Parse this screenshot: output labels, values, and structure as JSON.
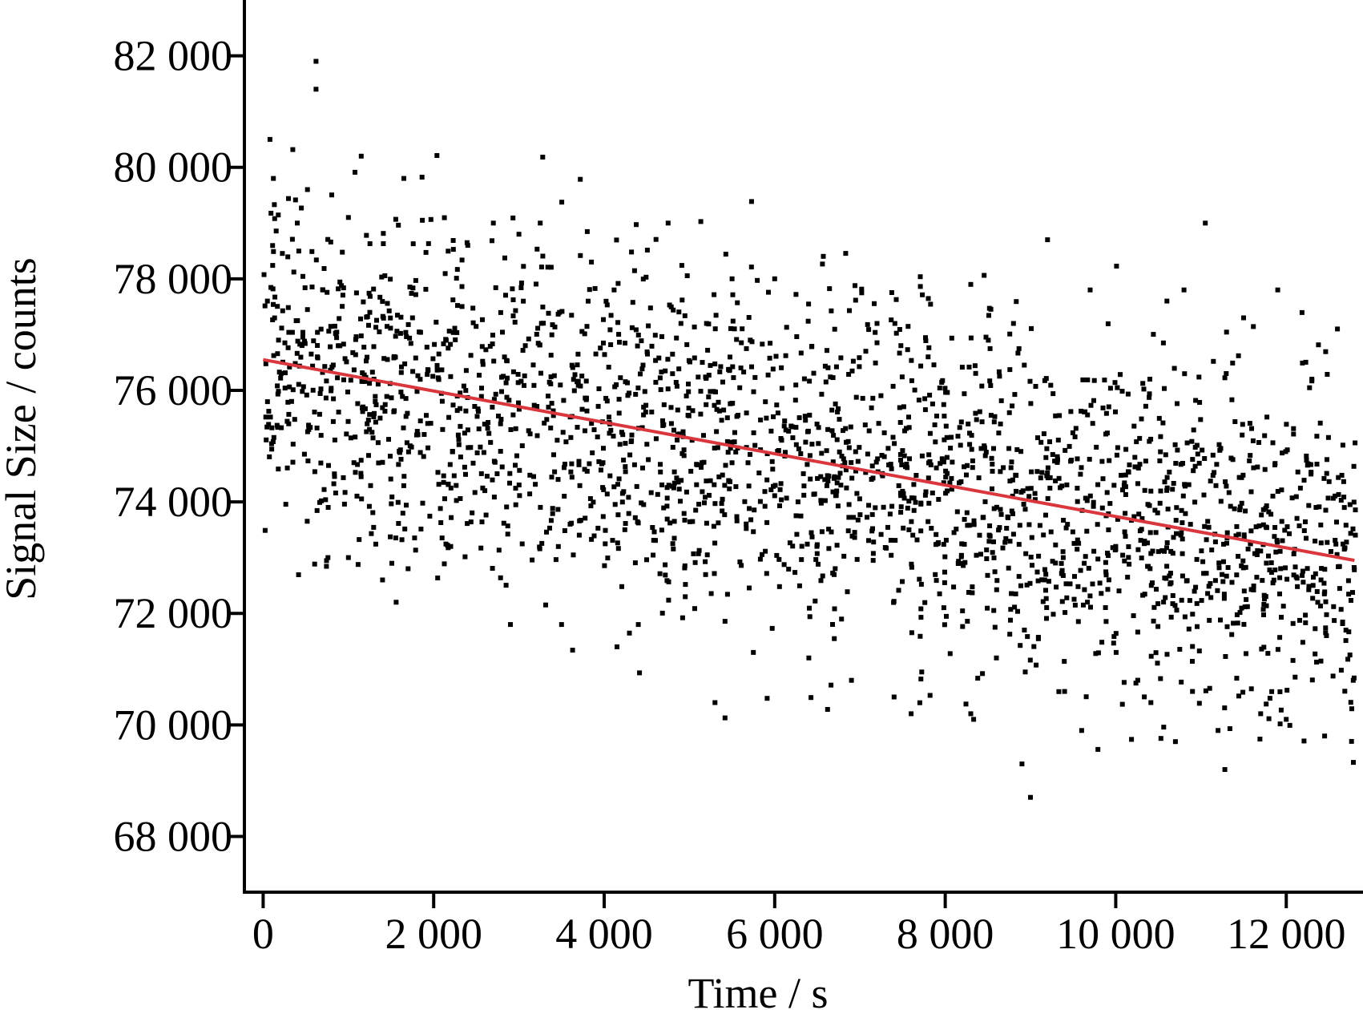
{
  "chart_data": {
    "type": "scatter",
    "title": "",
    "xlabel": "Time / s",
    "ylabel": "Signal Size / counts",
    "xlim": [
      -220,
      12900
    ],
    "ylim": [
      67000,
      83000
    ],
    "x_ticks": [
      0,
      2000,
      4000,
      6000,
      8000,
      10000,
      12000
    ],
    "x_tick_labels": [
      "0",
      "2 000",
      "4 000",
      "6 000",
      "8 000",
      "10 000",
      "12 000"
    ],
    "y_ticks": [
      68000,
      70000,
      72000,
      74000,
      76000,
      78000,
      80000,
      82000
    ],
    "y_tick_labels": [
      "68 000",
      "70 000",
      "72 000",
      "74 000",
      "76 000",
      "78 000",
      "80 000",
      "82 000"
    ],
    "grid": false,
    "legend": "none",
    "colors": {
      "points": "#000000",
      "fit_line": "#d9363e",
      "axis": "#000000"
    },
    "series": [
      {
        "type": "scatter",
        "points": [
          [
            50,
            77600
          ],
          [
            80,
            80500
          ],
          [
            120,
            79800
          ],
          [
            180,
            76900
          ],
          [
            300,
            75400
          ],
          [
            400,
            79000
          ],
          [
            520,
            79600
          ],
          [
            620,
            81900
          ],
          [
            620,
            81400
          ],
          [
            700,
            77800
          ],
          [
            760,
            73000
          ],
          [
            900,
            76800
          ],
          [
            1000,
            79100
          ],
          [
            1000,
            73000
          ],
          [
            1150,
            80200
          ],
          [
            1300,
            76200
          ],
          [
            1400,
            72600
          ],
          [
            1560,
            72200
          ],
          [
            1650,
            79800
          ],
          [
            1700,
            72800
          ],
          [
            1800,
            75200
          ],
          [
            2200,
            73200
          ],
          [
            2400,
            78600
          ],
          [
            2600,
            74200
          ],
          [
            2700,
            79000
          ],
          [
            2900,
            71800
          ],
          [
            3000,
            78800
          ],
          [
            3250,
            79000
          ],
          [
            3500,
            71800
          ],
          [
            3600,
            73600
          ],
          [
            3850,
            78300
          ],
          [
            4150,
            71400
          ],
          [
            4400,
            71800
          ],
          [
            4750,
            79000
          ],
          [
            4900,
            77200
          ],
          [
            5200,
            77200
          ],
          [
            5300,
            70400
          ],
          [
            5500,
            78000
          ],
          [
            5750,
            71300
          ],
          [
            6000,
            78000
          ],
          [
            6400,
            71200
          ],
          [
            6900,
            70800
          ],
          [
            7200,
            77200
          ],
          [
            7400,
            70500
          ],
          [
            7600,
            70200
          ],
          [
            7800,
            76600
          ],
          [
            8300,
            70200
          ],
          [
            8300,
            77900
          ],
          [
            8600,
            71200
          ],
          [
            8800,
            77200
          ],
          [
            8900,
            69300
          ],
          [
            9000,
            68700
          ],
          [
            9200,
            78700
          ],
          [
            9400,
            70600
          ],
          [
            9600,
            69900
          ],
          [
            9700,
            77800
          ],
          [
            10000,
            73200
          ],
          [
            10400,
            76200
          ],
          [
            10600,
            77600
          ],
          [
            10700,
            69700
          ],
          [
            10800,
            77800
          ],
          [
            10900,
            70600
          ],
          [
            11050,
            79000
          ],
          [
            11200,
            69900
          ],
          [
            11280,
            69200
          ],
          [
            11500,
            77300
          ],
          [
            11700,
            70200
          ],
          [
            11900,
            77800
          ],
          [
            12000,
            70100
          ],
          [
            12300,
            76200
          ],
          [
            12450,
            69800
          ],
          [
            12600,
            77100
          ],
          [
            12700,
            71700
          ]
        ]
      },
      {
        "type": "line",
        "points": [
          [
            0,
            76550
          ],
          [
            12800,
            72950
          ]
        ]
      }
    ]
  }
}
